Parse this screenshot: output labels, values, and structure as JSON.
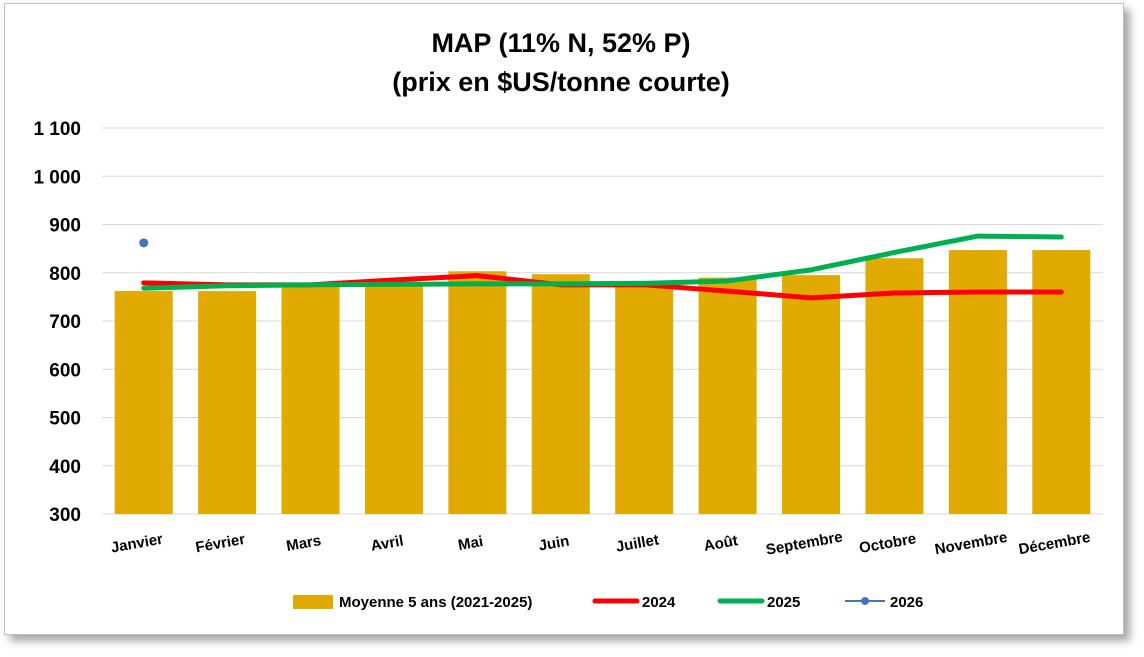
{
  "chart_data": {
    "type": "bar",
    "title_lines": [
      "MAP (11% N, 52% P)",
      "(prix en $US/tonne courte)"
    ],
    "categories": [
      "Janvier",
      "Février",
      "Mars",
      "Avril",
      "Mai",
      "Juin",
      "Juillet",
      "Août",
      "Septembre",
      "Octobre",
      "Novembre",
      "Décembre"
    ],
    "ylim": [
      300,
      1100
    ],
    "yticks": [
      300,
      400,
      500,
      600,
      700,
      800,
      900,
      1000,
      1100
    ],
    "ytick_labels": [
      "300",
      "400",
      "500",
      "600",
      "700",
      "800",
      "900",
      "1 000",
      "1 100"
    ],
    "grid": true,
    "legend_position": "bottom",
    "series": [
      {
        "name": "Moyenne 5 ans (2021-2025)",
        "kind": "bar",
        "color": "#E0AA00",
        "values": [
          762,
          762,
          775,
          780,
          803,
          797,
          783,
          790,
          795,
          830,
          847,
          847
        ]
      },
      {
        "name": "2024",
        "kind": "line",
        "color": "#FF0000",
        "values": [
          779,
          775,
          775,
          785,
          794,
          775,
          775,
          762,
          748,
          758,
          760,
          760
        ]
      },
      {
        "name": "2025",
        "kind": "line",
        "color": "#00B050",
        "values": [
          768,
          773,
          775,
          776,
          777,
          777,
          778,
          783,
          806,
          842,
          876,
          874
        ]
      },
      {
        "name": "2026",
        "kind": "point",
        "color": "#4472C4",
        "values": [
          862,
          null,
          null,
          null,
          null,
          null,
          null,
          null,
          null,
          null,
          null,
          null
        ]
      }
    ]
  }
}
